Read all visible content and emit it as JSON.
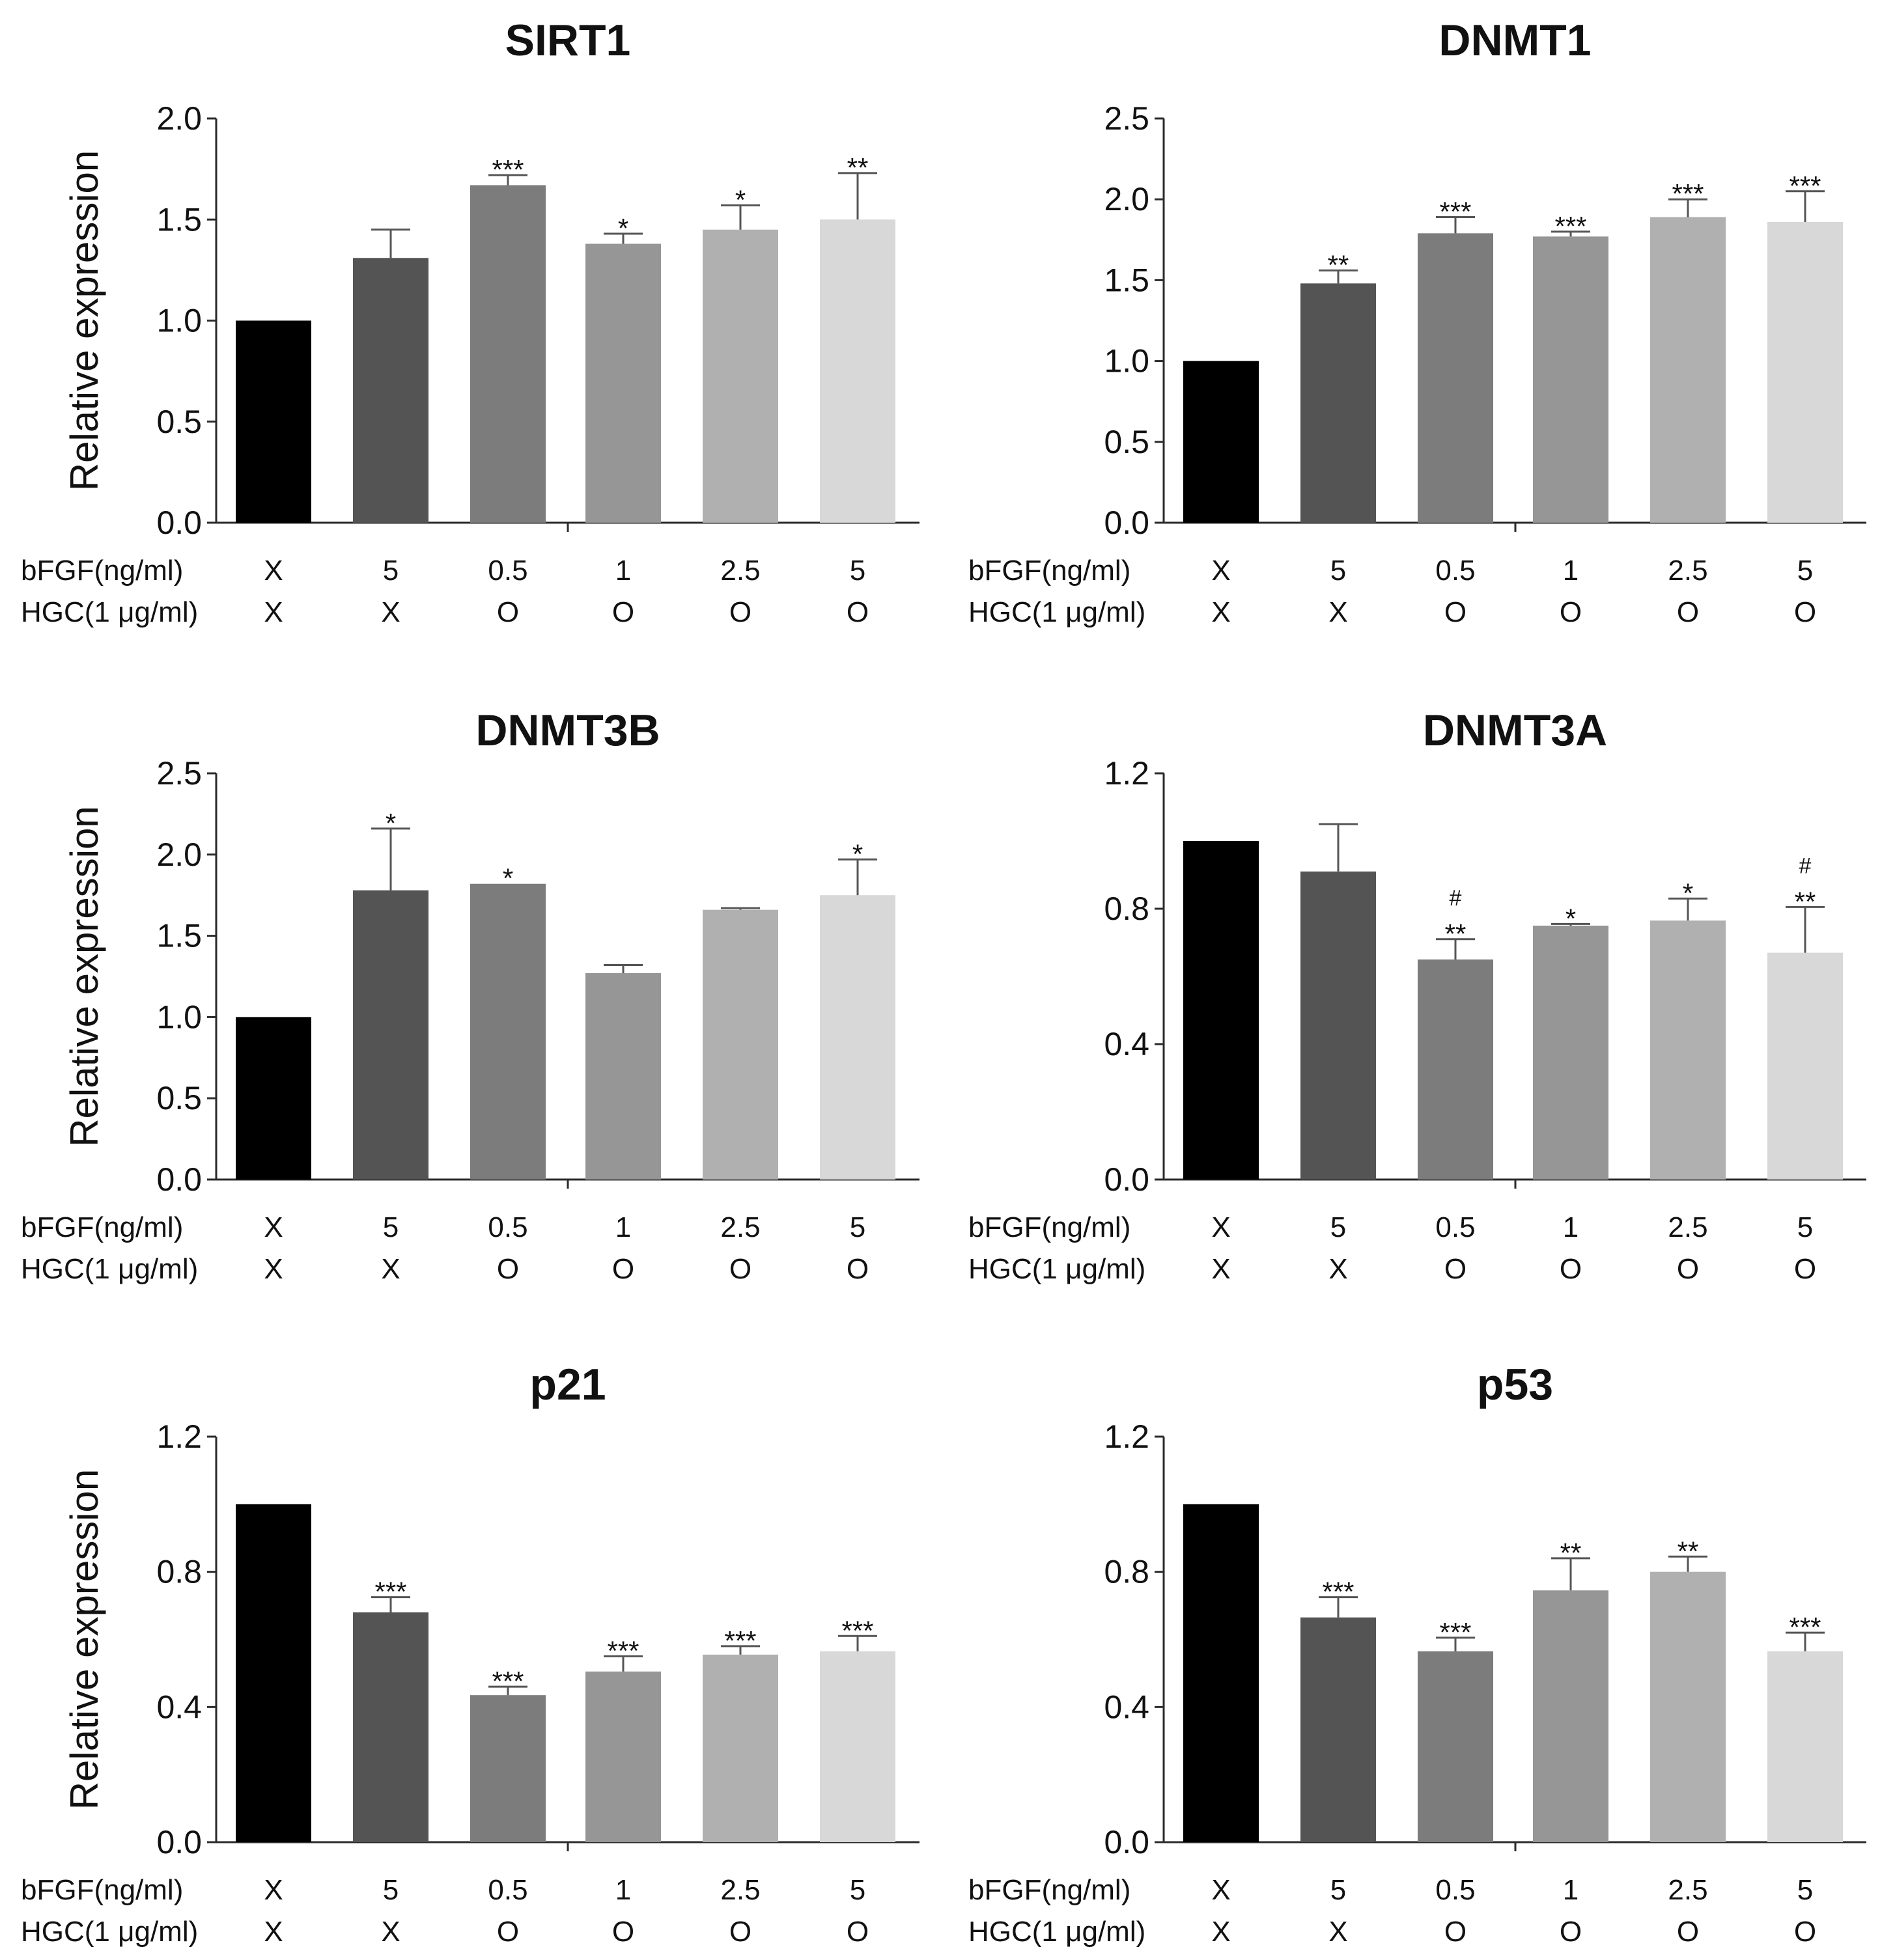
{
  "row_labels": {
    "bfgf": "bFGF(ng/ml)",
    "hgc": "HGC(1  μg/ml)"
  },
  "colors": {
    "bars": [
      "#000000",
      "#545454",
      "#7c7c7c",
      "#969696",
      "#b0b0b0",
      "#d8d8d8"
    ],
    "axis": "#2a2a2a",
    "error": "#555555"
  },
  "chart_data": [
    {
      "type": "bar",
      "title": "SIRT1",
      "ylabel": "Relative expression",
      "ylim": [
        0,
        2.0
      ],
      "yticks": [
        "0.0",
        "0.5",
        "1.0",
        "1.5",
        "2.0"
      ],
      "bfgf": [
        "X",
        "5",
        "0.5",
        "1",
        "2.5",
        "5"
      ],
      "hgc": [
        "X",
        "X",
        "O",
        "O",
        "O",
        "O"
      ],
      "values": [
        1.0,
        1.31,
        1.67,
        1.38,
        1.45,
        1.5
      ],
      "errors": [
        0,
        0.14,
        0.05,
        0.05,
        0.12,
        0.23
      ],
      "significance": [
        [],
        [],
        [
          "***"
        ],
        [
          "*"
        ],
        [
          "*"
        ],
        [
          "**"
        ]
      ]
    },
    {
      "type": "bar",
      "title": "DNMT1",
      "ylabel": "",
      "ylim": [
        0,
        2.5
      ],
      "yticks": [
        "0.0",
        "0.5",
        "1.0",
        "1.5",
        "2.0",
        "2.5"
      ],
      "bfgf": [
        "X",
        "5",
        "0.5",
        "1",
        "2.5",
        "5"
      ],
      "hgc": [
        "X",
        "X",
        "O",
        "O",
        "O",
        "O"
      ],
      "values": [
        1.0,
        1.48,
        1.79,
        1.77,
        1.89,
        1.86
      ],
      "errors": [
        0,
        0.08,
        0.1,
        0.03,
        0.11,
        0.19
      ],
      "significance": [
        [],
        [
          "**"
        ],
        [
          "***"
        ],
        [
          "***"
        ],
        [
          "***"
        ],
        [
          "***"
        ]
      ]
    },
    {
      "type": "bar",
      "title": "DNMT3B",
      "ylabel": "Relative expression",
      "ylim": [
        0,
        2.5
      ],
      "yticks": [
        "0.0",
        "0.5",
        "1.0",
        "1.5",
        "2.0",
        "2.5"
      ],
      "bfgf": [
        "X",
        "5",
        "0.5",
        "1",
        "2.5",
        "5"
      ],
      "hgc": [
        "X",
        "X",
        "O",
        "O",
        "O",
        "O"
      ],
      "values": [
        1.0,
        1.78,
        1.82,
        1.27,
        1.66,
        1.75
      ],
      "errors": [
        0,
        0.38,
        0,
        0.05,
        0.01,
        0.22
      ],
      "significance": [
        [],
        [
          "*"
        ],
        [
          "*"
        ],
        [],
        [],
        [
          "*"
        ]
      ]
    },
    {
      "type": "bar",
      "title": "DNMT3A",
      "ylabel": "",
      "ylim": [
        0,
        1.2
      ],
      "yticks": [
        "0.0",
        "0.4",
        "0.8",
        "1.2"
      ],
      "bfgf": [
        "X",
        "5",
        "0.5",
        "1",
        "2.5",
        "5"
      ],
      "hgc": [
        "X",
        "X",
        "O",
        "O",
        "O",
        "O"
      ],
      "values": [
        1.0,
        0.91,
        0.65,
        0.75,
        0.765,
        0.67
      ],
      "errors": [
        0,
        0.14,
        0.06,
        0.005,
        0.065,
        0.135
      ],
      "significance": [
        [],
        [],
        [
          "#",
          "**"
        ],
        [
          "*"
        ],
        [
          "*"
        ],
        [
          "#",
          "**"
        ]
      ]
    },
    {
      "type": "bar",
      "title": "p21",
      "ylabel": "Relative expression",
      "ylim": [
        0,
        1.2
      ],
      "yticks": [
        "0.0",
        "0.4",
        "0.8",
        "1.2"
      ],
      "bfgf": [
        "X",
        "5",
        "0.5",
        "1",
        "2.5",
        "5"
      ],
      "hgc": [
        "X",
        "X",
        "O",
        "O",
        "O",
        "O"
      ],
      "values": [
        1.0,
        0.68,
        0.435,
        0.505,
        0.555,
        0.565
      ],
      "errors": [
        0,
        0.045,
        0.025,
        0.045,
        0.025,
        0.045
      ],
      "significance": [
        [],
        [
          "***"
        ],
        [
          "***"
        ],
        [
          "***"
        ],
        [
          "***"
        ],
        [
          "***"
        ]
      ]
    },
    {
      "type": "bar",
      "title": "p53",
      "ylabel": "",
      "ylim": [
        0,
        1.2
      ],
      "yticks": [
        "0.0",
        "0.4",
        "0.8",
        "1.2"
      ],
      "bfgf": [
        "X",
        "5",
        "0.5",
        "1",
        "2.5",
        "5"
      ],
      "hgc": [
        "X",
        "X",
        "O",
        "O",
        "O",
        "O"
      ],
      "values": [
        1.0,
        0.665,
        0.565,
        0.745,
        0.8,
        0.565
      ],
      "errors": [
        0,
        0.06,
        0.04,
        0.095,
        0.045,
        0.055
      ],
      "significance": [
        [],
        [
          "***"
        ],
        [
          "***"
        ],
        [
          "**"
        ],
        [
          "**"
        ],
        [
          "***"
        ]
      ]
    }
  ]
}
